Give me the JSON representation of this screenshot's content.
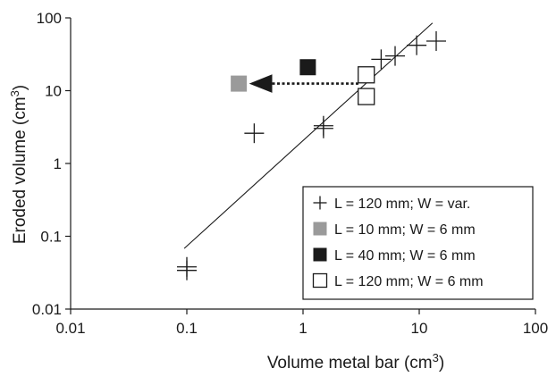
{
  "chart_data": {
    "type": "scatter",
    "x_scale": "log",
    "y_scale": "log",
    "xlim": [
      0.01,
      100
    ],
    "ylim": [
      0.01,
      100
    ],
    "xticks": [
      "0.01",
      "0.1",
      "1",
      "10",
      "100"
    ],
    "yticks": [
      "0.01",
      "0.1",
      "1",
      "10",
      "100"
    ],
    "xlabel": "Volume metal bar (cm",
    "xlabel_sup": "3",
    "xlabel_end": ")",
    "ylabel": "Eroded volume (cm",
    "ylabel_sup": "3",
    "ylabel_end": ")",
    "grid": false,
    "legend_position": "bottom-right",
    "series": [
      {
        "name": "L = 120 mm; W = var.",
        "marker": "plus",
        "color": "#1a1a1a",
        "points": [
          [
            0.1,
            0.038
          ],
          [
            0.38,
            2.6
          ],
          [
            1.5,
            3.3
          ],
          [
            4.7,
            27
          ],
          [
            6.2,
            30
          ],
          [
            9.5,
            42
          ],
          [
            14,
            48
          ]
        ]
      },
      {
        "name": "L = 10 mm; W = 6 mm",
        "marker": "square-filled",
        "color": "#9a9a9a",
        "points": [
          [
            0.28,
            12.5
          ]
        ]
      },
      {
        "name": "L = 40 mm; W = 6 mm",
        "marker": "square-filled",
        "color": "#1a1a1a",
        "points": [
          [
            1.1,
            21
          ]
        ]
      },
      {
        "name": "L = 120 mm; W = 6 mm",
        "marker": "square-open",
        "color": "#1a1a1a",
        "points": [
          [
            3.5,
            16.5
          ],
          [
            3.5,
            8.3
          ]
        ]
      }
    ],
    "fit_line": {
      "from": [
        0.095,
        0.068
      ],
      "to": [
        13,
        85
      ]
    },
    "annotation_arrow": {
      "from": [
        3.0,
        12.5
      ],
      "to": [
        0.36,
        12.5
      ],
      "style": "dotted"
    }
  }
}
